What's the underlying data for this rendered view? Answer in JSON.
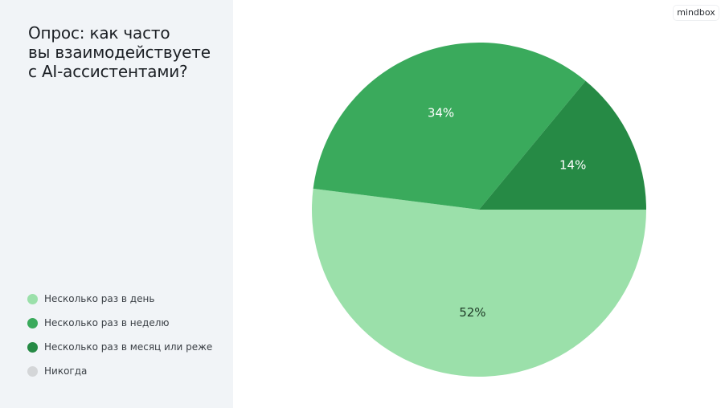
{
  "brand": {
    "logo_text": "mindbox"
  },
  "chart_data": {
    "type": "pie",
    "title": "Опрос: как часто вы взаимодействуете с AI-ассистентами?",
    "title_lines": [
      "Опрос: как часто",
      "вы взаимодействуете",
      "с AI-ассистентами?"
    ],
    "legend_placement": "bottom-left",
    "start_angle_deg": 0,
    "direction": "clockwise",
    "slices": [
      {
        "label": "Несколько раз в день",
        "value": 52,
        "value_label": "52%",
        "color": "#9be0aa",
        "label_color": "#1f3b27"
      },
      {
        "label": "Несколько раз в неделю",
        "value": 34,
        "value_label": "34%",
        "color": "#3aaa5c",
        "label_color": "#ffffff"
      },
      {
        "label": "Несколько раз в месяц или реже",
        "value": 14,
        "value_label": "14%",
        "color": "#268a45",
        "label_color": "#ffffff"
      },
      {
        "label": "Никогда",
        "value": 0,
        "value_label": "",
        "color": "#d4d6d8",
        "label_color": "#ffffff"
      }
    ]
  }
}
